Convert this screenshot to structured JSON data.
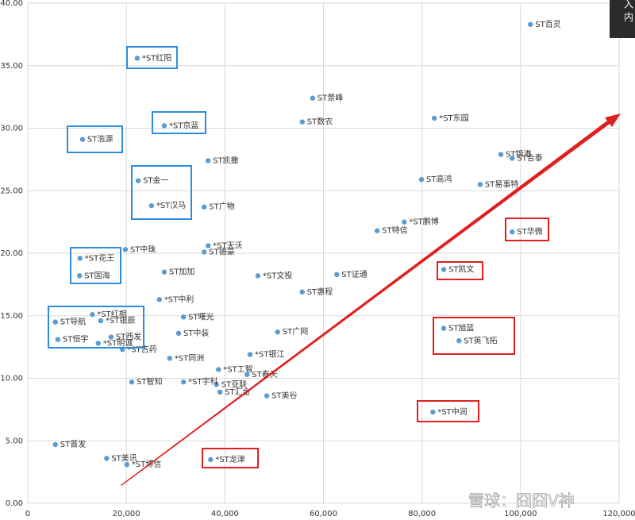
{
  "chart_data": {
    "type": "scatter",
    "x": [
      102000,
      22200,
      57800,
      82500,
      27700,
      55700,
      11100,
      96000,
      98300,
      36600,
      79900,
      91800,
      22400,
      25100,
      35800,
      76400,
      70900,
      98300,
      36600,
      19800,
      35800,
      10600,
      84400,
      27700,
      10500,
      46700,
      62700,
      55700,
      26700,
      13100,
      5600,
      14800,
      31600,
      84400,
      50700,
      30600,
      16900,
      87500,
      6100,
      14300,
      45100,
      19200,
      28800,
      38700,
      44500,
      38300,
      31600,
      39000,
      48500,
      82200,
      37100,
      20100,
      16000,
      5600,
      21100
    ],
    "values": [
      38.3,
      35.6,
      32.4,
      30.8,
      30.2,
      30.5,
      29.1,
      27.9,
      27.6,
      27.4,
      25.9,
      25.5,
      25.8,
      23.8,
      23.7,
      22.5,
      21.8,
      21.7,
      20.6,
      20.3,
      20.1,
      19.6,
      18.7,
      18.5,
      18.2,
      18.2,
      18.3,
      16.9,
      16.3,
      15.1,
      14.5,
      14.6,
      14.9,
      14.0,
      13.7,
      13.6,
      13.3,
      13.0,
      13.1,
      12.8,
      11.9,
      12.3,
      11.6,
      10.7,
      10.3,
      9.5,
      9.7,
      8.9,
      8.6,
      7.3,
      3.5,
      3.1,
      3.6,
      4.7,
      9.7
    ],
    "point_labels": [
      "ST百灵",
      "*ST红阳",
      "ST景峰",
      "*ST东园",
      "*ST京蓝",
      "ST数农",
      "ST浩源",
      "ST锦港",
      "ST合泰",
      "ST凯撒",
      "ST高鸿",
      "ST易事特",
      "ST金一",
      "*ST汉马",
      "ST广物",
      "*ST鹏博",
      "ST特信",
      "ST华微",
      "*ST天沃",
      "ST中珠",
      "ST德豪",
      "*ST花王",
      "ST凯文",
      "ST加加",
      "ST国海",
      "*ST文投",
      "ST证通",
      "ST惠程",
      "*ST中利",
      "*ST红相",
      "ST导航",
      "*ST银辰",
      "ST曙光",
      "ST旭蓝",
      "ST广网",
      "ST中装",
      "ST西发",
      "ST英飞拓",
      "ST恒宇",
      "*ST明诚",
      "*ST银江",
      "*ST吉药",
      "*ST同洲",
      "*ST工智",
      "ST春天",
      "ST亚联",
      "*ST宇科",
      "ST汇金",
      "ST美谷",
      "*ST中润",
      "*ST龙津",
      "*ST博信",
      "ST美讯",
      "ST晋发",
      "ST智知"
    ],
    "color": "#5b9bd5",
    "xlim": [
      0,
      120000
    ],
    "ylim": [
      0,
      40
    ],
    "xticks": [
      0,
      {
        "value": 20000,
        "label": "20,000"
      },
      {
        "value": 40000,
        "label": "40,000"
      },
      {
        "value": 60000,
        "label": "60,000"
      },
      {
        "value": 80000,
        "label": "80,000"
      },
      {
        "value": 100000,
        "label": "100,000"
      },
      {
        "value": 120000,
        "label": "120,000"
      }
    ],
    "yticks": [
      {
        "value": 0,
        "label": "0.00"
      },
      {
        "value": 5,
        "label": "5.00"
      },
      {
        "value": 10,
        "label": "10.00"
      },
      {
        "value": 15,
        "label": "15.00"
      },
      {
        "value": 20,
        "label": "20.00"
      },
      {
        "value": 25,
        "label": "25.00"
      },
      {
        "value": 30,
        "label": "30.00"
      },
      {
        "value": 35,
        "label": "35.00"
      },
      {
        "value": 40,
        "label": "40.00"
      }
    ],
    "grid": true,
    "watermark": "雪球：囧囧V神",
    "tooltip_lines": [
      "入",
      "内"
    ]
  }
}
